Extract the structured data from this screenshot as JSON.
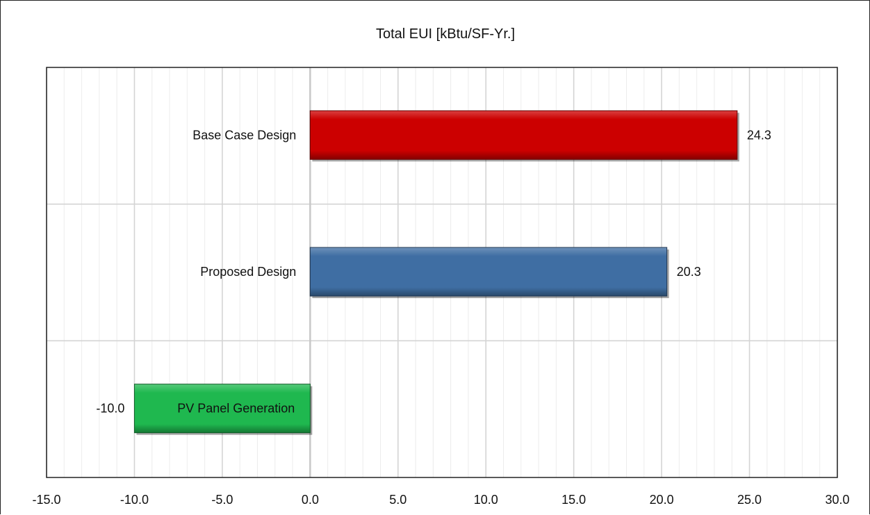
{
  "chart_data": {
    "type": "bar",
    "orientation": "horizontal",
    "title": "Total EUI [kBtu/SF-Yr.]",
    "xlabel": "",
    "ylabel": "",
    "categories": [
      "Base Case Design",
      "Proposed Design",
      "PV Panel Generation"
    ],
    "values": [
      24.3,
      20.3,
      -10.0
    ],
    "data_labels": [
      "24.3",
      "20.3",
      "-10.0"
    ],
    "colors": [
      "#cc0000",
      "#3f6ea3",
      "#1fb84f"
    ],
    "xlim": [
      -15,
      30
    ],
    "x_ticks": [
      -15,
      -10,
      -5,
      0,
      5,
      10,
      15,
      20,
      25,
      30
    ],
    "x_tick_labels": [
      "-15.0",
      "-10.0",
      "-5.0",
      "0.0",
      "5.0",
      "10.0",
      "15.0",
      "20.0",
      "25.0",
      "30.0"
    ],
    "grid": true,
    "legend": "none"
  }
}
